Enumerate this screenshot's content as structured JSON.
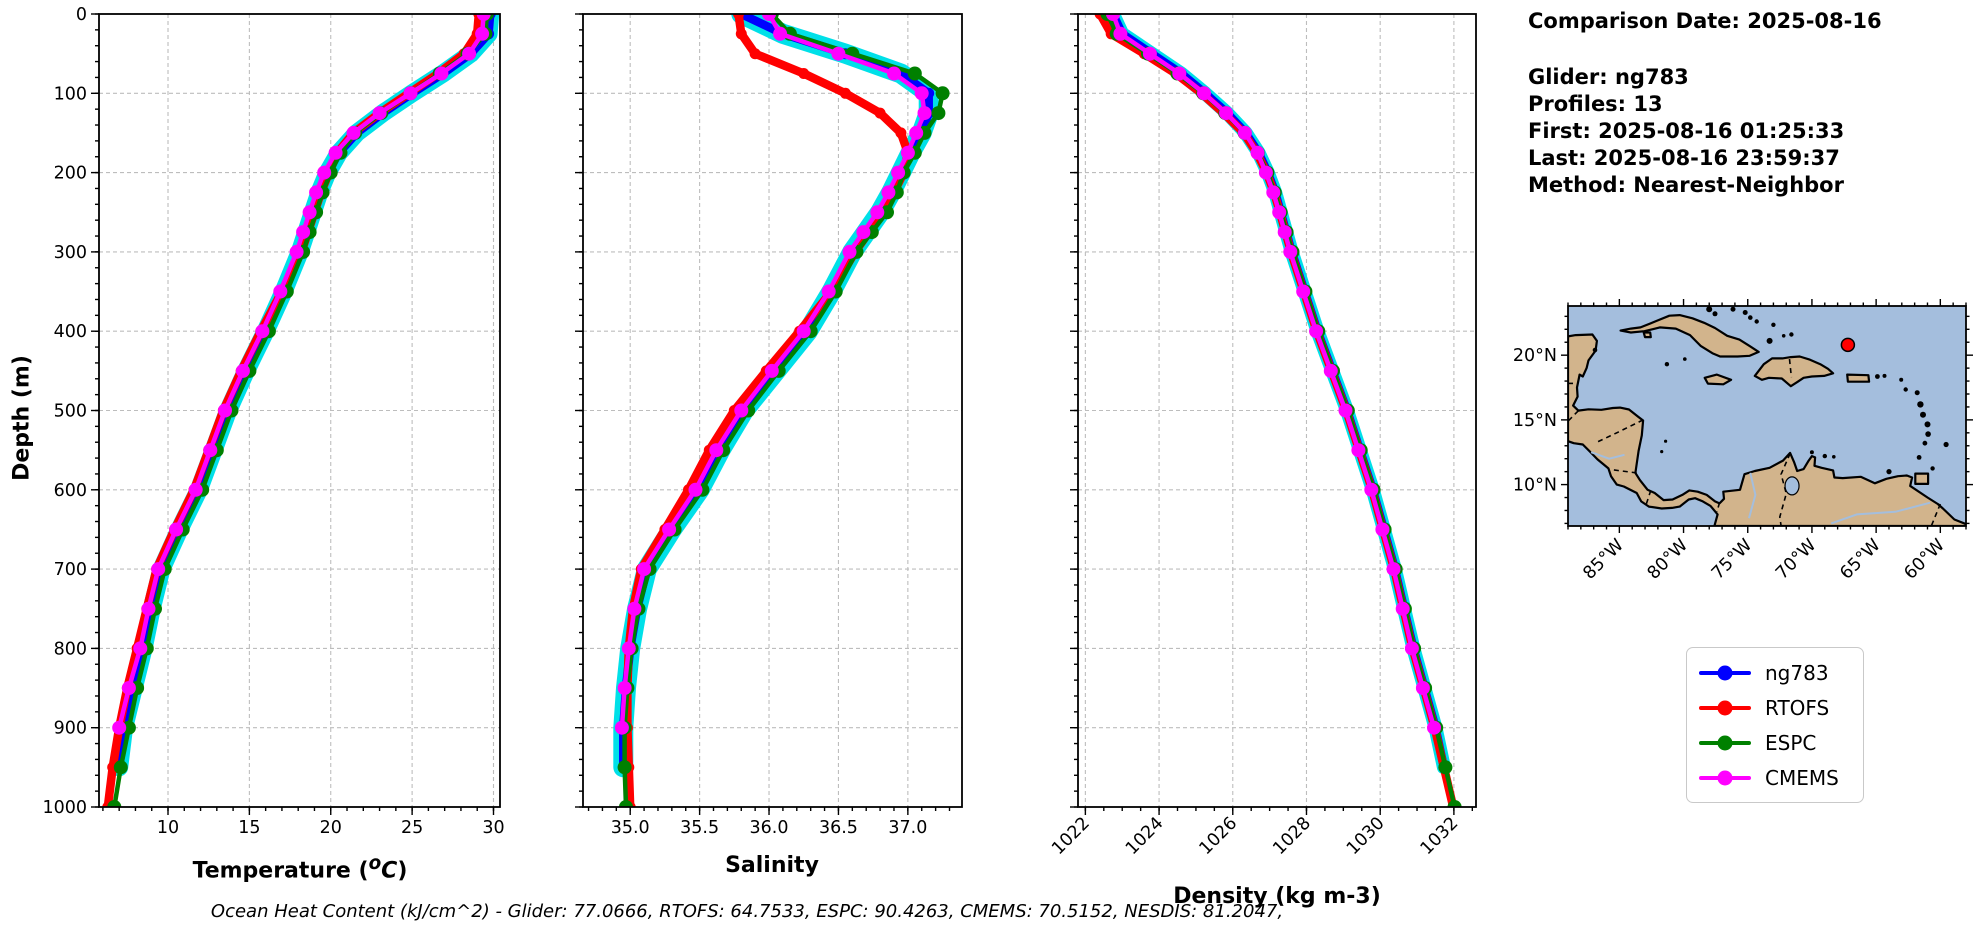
{
  "header": {
    "comparison_date": "Comparison Date: 2025-08-16",
    "glider": "Glider: ng783",
    "profiles": "Profiles: 13",
    "first": "First: 2025-08-16 01:25:33",
    "last": "Last: 2025-08-16 23:59:37",
    "method": "Method: Nearest-Neighbor"
  },
  "footer": {
    "text": "Ocean Heat Content (kJ/cm^2) - Glider: 77.0666,  RTOFS: 64.7533,  ESPC: 90.4263,  CMEMS: 70.5152,  NESDIS: 81.2047,"
  },
  "labels": {
    "ylabel": "Depth (m)",
    "temperature": {
      "pre": "Temperature (",
      "sup": "o",
      "unit": "C",
      "close": ")"
    },
    "salinity": "Salinity",
    "density": "Density (kg m-3)"
  },
  "legend": {
    "items": [
      {
        "label": "ng783",
        "color": "#0000ff"
      },
      {
        "label": "RTOFS",
        "color": "#ff0000"
      },
      {
        "label": "ESPC",
        "color": "#008000"
      },
      {
        "label": "CMEMS",
        "color": "#ff00ff"
      }
    ]
  },
  "colors": {
    "envelope": "#00e0e8",
    "grid": "#bdbdbd",
    "frame": "#000000"
  },
  "chart_data": [
    {
      "id": "temperature",
      "type": "line",
      "xlabel": "Temperature (°C)",
      "ylabel": "Depth (m)",
      "xlim": [
        5.76,
        30.4
      ],
      "ylim": [
        0,
        1000
      ],
      "xticks": [
        10,
        15,
        20,
        25,
        30
      ],
      "xtick_labels": [
        "10",
        "15",
        "20",
        "25",
        "30"
      ],
      "xminor_step": 1,
      "yticks": [
        0,
        100,
        200,
        300,
        400,
        500,
        600,
        700,
        800,
        900,
        1000
      ],
      "ytick_labels": [
        "0",
        "100",
        "200",
        "300",
        "400",
        "500",
        "600",
        "700",
        "800",
        "900",
        "1000"
      ],
      "show_ytick_labels": true,
      "depths": [
        0,
        25,
        50,
        75,
        100,
        125,
        150,
        175,
        200,
        225,
        250,
        275,
        300,
        350,
        400,
        450,
        500,
        550,
        600,
        650,
        700,
        750,
        800,
        850,
        900,
        950,
        1000
      ],
      "series": [
        {
          "name": "ng783",
          "color": "#0000ff",
          "envelope": true,
          "values": [
            29.8,
            29.7,
            28.6,
            26.9,
            25.0,
            23.2,
            21.6,
            20.5,
            19.8,
            19.3,
            18.9,
            18.5,
            18.1,
            17.1,
            16.0,
            14.8,
            13.7,
            12.8,
            11.9,
            10.7,
            9.6,
            9.0,
            8.5,
            7.9,
            7.3,
            7.0,
            null
          ]
        },
        {
          "name": "RTOFS",
          "color": "#ff0000",
          "values": [
            29.1,
            29.0,
            28.2,
            26.6,
            24.8,
            23.0,
            21.4,
            20.4,
            19.9,
            19.4,
            19.0,
            18.6,
            18.2,
            17.0,
            15.7,
            14.5,
            13.4,
            12.5,
            11.6,
            10.4,
            9.3,
            8.7,
            8.1,
            7.5,
            7.0,
            6.6,
            6.3
          ]
        },
        {
          "name": "ESPC",
          "color": "#008000",
          "markers": true,
          "values": [
            29.6,
            29.5,
            28.4,
            26.7,
            24.9,
            23.1,
            21.5,
            20.6,
            20.0,
            19.5,
            19.1,
            18.7,
            18.3,
            17.3,
            16.2,
            15.0,
            13.9,
            13.0,
            12.1,
            10.9,
            9.8,
            9.2,
            8.7,
            8.1,
            7.6,
            7.1,
            6.7
          ]
        },
        {
          "name": "CMEMS",
          "color": "#ff00ff",
          "markers": true,
          "values": [
            29.4,
            29.3,
            28.5,
            26.8,
            24.9,
            23.0,
            21.4,
            20.3,
            19.6,
            19.1,
            18.7,
            18.3,
            17.9,
            16.9,
            15.8,
            14.6,
            13.5,
            12.6,
            11.7,
            10.5,
            9.4,
            8.8,
            8.3,
            7.6,
            7.0,
            null,
            null
          ]
        }
      ]
    },
    {
      "id": "salinity",
      "type": "line",
      "xlabel": "Salinity",
      "ylabel": "Depth (m)",
      "xlim": [
        34.66,
        37.39
      ],
      "ylim": [
        0,
        1000
      ],
      "xticks": [
        35.0,
        35.5,
        36.0,
        36.5,
        37.0
      ],
      "xtick_labels": [
        "35.0",
        "35.5",
        "36.0",
        "36.5",
        "37.0"
      ],
      "xminor_step": 0.1,
      "yticks": [
        0,
        100,
        200,
        300,
        400,
        500,
        600,
        700,
        800,
        900,
        1000
      ],
      "ytick_labels": [],
      "show_ytick_labels": false,
      "depths": [
        0,
        25,
        50,
        75,
        100,
        125,
        150,
        175,
        200,
        225,
        250,
        275,
        300,
        350,
        400,
        450,
        500,
        550,
        600,
        650,
        700,
        750,
        800,
        850,
        900,
        950,
        1000
      ],
      "series": [
        {
          "name": "ng783",
          "color": "#0000ff",
          "envelope": true,
          "values": [
            35.8,
            36.1,
            36.55,
            36.95,
            37.15,
            37.15,
            37.1,
            37.02,
            36.95,
            36.88,
            36.8,
            36.7,
            36.6,
            36.45,
            36.28,
            36.05,
            35.82,
            35.65,
            35.5,
            35.3,
            35.12,
            35.05,
            35.0,
            34.97,
            34.95,
            34.95,
            null
          ]
        },
        {
          "name": "RTOFS",
          "color": "#ff0000",
          "values": [
            35.78,
            35.8,
            35.9,
            36.25,
            36.55,
            36.8,
            36.95,
            37.0,
            36.97,
            36.9,
            36.82,
            36.72,
            36.62,
            36.45,
            36.22,
            35.98,
            35.75,
            35.57,
            35.42,
            35.25,
            35.08,
            35.02,
            34.99,
            34.98,
            34.98,
            34.99,
            35.0
          ]
        },
        {
          "name": "ESPC",
          "color": "#008000",
          "markers": true,
          "values": [
            36.02,
            36.15,
            36.6,
            37.05,
            37.25,
            37.22,
            37.12,
            37.05,
            36.97,
            36.92,
            36.85,
            36.74,
            36.63,
            36.48,
            36.3,
            36.07,
            35.85,
            35.67,
            35.52,
            35.32,
            35.14,
            35.06,
            35.01,
            34.98,
            34.96,
            34.96,
            34.97
          ]
        },
        {
          "name": "CMEMS",
          "color": "#ff00ff",
          "markers": true,
          "values": [
            36.0,
            36.08,
            36.5,
            36.9,
            37.1,
            37.12,
            37.06,
            37.0,
            36.93,
            36.86,
            36.78,
            36.68,
            36.58,
            36.43,
            36.25,
            36.02,
            35.8,
            35.62,
            35.47,
            35.28,
            35.1,
            35.03,
            34.99,
            34.96,
            34.94,
            null,
            null
          ]
        }
      ]
    },
    {
      "id": "density",
      "type": "line",
      "xlabel": "Density (kg m-3)",
      "ylabel": "Depth (m)",
      "xlim": [
        1021.8,
        1032.6
      ],
      "ylim": [
        0,
        1000
      ],
      "xticks": [
        1022,
        1024,
        1026,
        1028,
        1030,
        1032
      ],
      "xtick_labels": [
        "1022",
        "1024",
        "1026",
        "1028",
        "1030",
        "1032"
      ],
      "xtick_rotation": 45,
      "xminor_step": 0.5,
      "yticks": [
        0,
        100,
        200,
        300,
        400,
        500,
        600,
        700,
        800,
        900,
        1000
      ],
      "ytick_labels": [],
      "show_ytick_labels": false,
      "depths": [
        0,
        25,
        50,
        75,
        100,
        125,
        150,
        175,
        200,
        225,
        250,
        275,
        300,
        350,
        400,
        450,
        500,
        550,
        600,
        650,
        700,
        750,
        800,
        850,
        900,
        950,
        1000
      ],
      "series": [
        {
          "name": "ng783",
          "color": "#0000ff",
          "envelope": true,
          "values": [
            1022.75,
            1023.0,
            1023.8,
            1024.6,
            1025.25,
            1025.85,
            1026.35,
            1026.7,
            1026.95,
            1027.15,
            1027.3,
            1027.45,
            1027.6,
            1027.95,
            1028.3,
            1028.7,
            1029.1,
            1029.45,
            1029.8,
            1030.1,
            1030.4,
            1030.65,
            1030.9,
            1031.2,
            1031.5,
            1031.73,
            null
          ]
        },
        {
          "name": "RTOFS",
          "color": "#ff0000",
          "values": [
            1022.4,
            1022.7,
            1023.6,
            1024.45,
            1025.15,
            1025.75,
            1026.3,
            1026.65,
            1026.92,
            1027.12,
            1027.28,
            1027.43,
            1027.58,
            1027.93,
            1028.28,
            1028.68,
            1029.08,
            1029.43,
            1029.78,
            1030.08,
            1030.38,
            1030.63,
            1030.88,
            1031.18,
            1031.48,
            1031.73,
            1031.98
          ]
        },
        {
          "name": "ESPC",
          "color": "#008000",
          "markers": true,
          "values": [
            1022.6,
            1022.85,
            1023.7,
            1024.5,
            1025.2,
            1025.8,
            1026.32,
            1026.68,
            1026.94,
            1027.14,
            1027.3,
            1027.46,
            1027.62,
            1027.97,
            1028.32,
            1028.72,
            1029.12,
            1029.47,
            1029.82,
            1030.12,
            1030.42,
            1030.67,
            1030.92,
            1031.22,
            1031.52,
            1031.77,
            1032.02
          ]
        },
        {
          "name": "CMEMS",
          "color": "#ff00ff",
          "markers": true,
          "values": [
            1022.75,
            1022.95,
            1023.75,
            1024.55,
            1025.22,
            1025.82,
            1026.33,
            1026.67,
            1026.9,
            1027.1,
            1027.26,
            1027.41,
            1027.56,
            1027.91,
            1028.26,
            1028.66,
            1029.06,
            1029.41,
            1029.76,
            1030.06,
            1030.36,
            1030.61,
            1030.86,
            1031.16,
            1031.46,
            null,
            null
          ]
        }
      ]
    }
  ],
  "map": {
    "extent": {
      "lon": [
        -89,
        -58
      ],
      "lat": [
        6.8,
        23.8
      ]
    },
    "lon_ticks": [
      -85,
      -80,
      -75,
      -70,
      -65,
      -60
    ],
    "lon_labels": [
      "85°W",
      "80°W",
      "75°W",
      "70°W",
      "65°W",
      "60°W"
    ],
    "lat_ticks": [
      20,
      15,
      10
    ],
    "lat_labels": [
      "20°N",
      "15°N",
      "10°N"
    ],
    "marker": {
      "lon": -67.2,
      "lat": 20.8,
      "color": "#ff0000"
    },
    "ocean_color": "#a4bedd",
    "land_color": "#d2b48c"
  }
}
